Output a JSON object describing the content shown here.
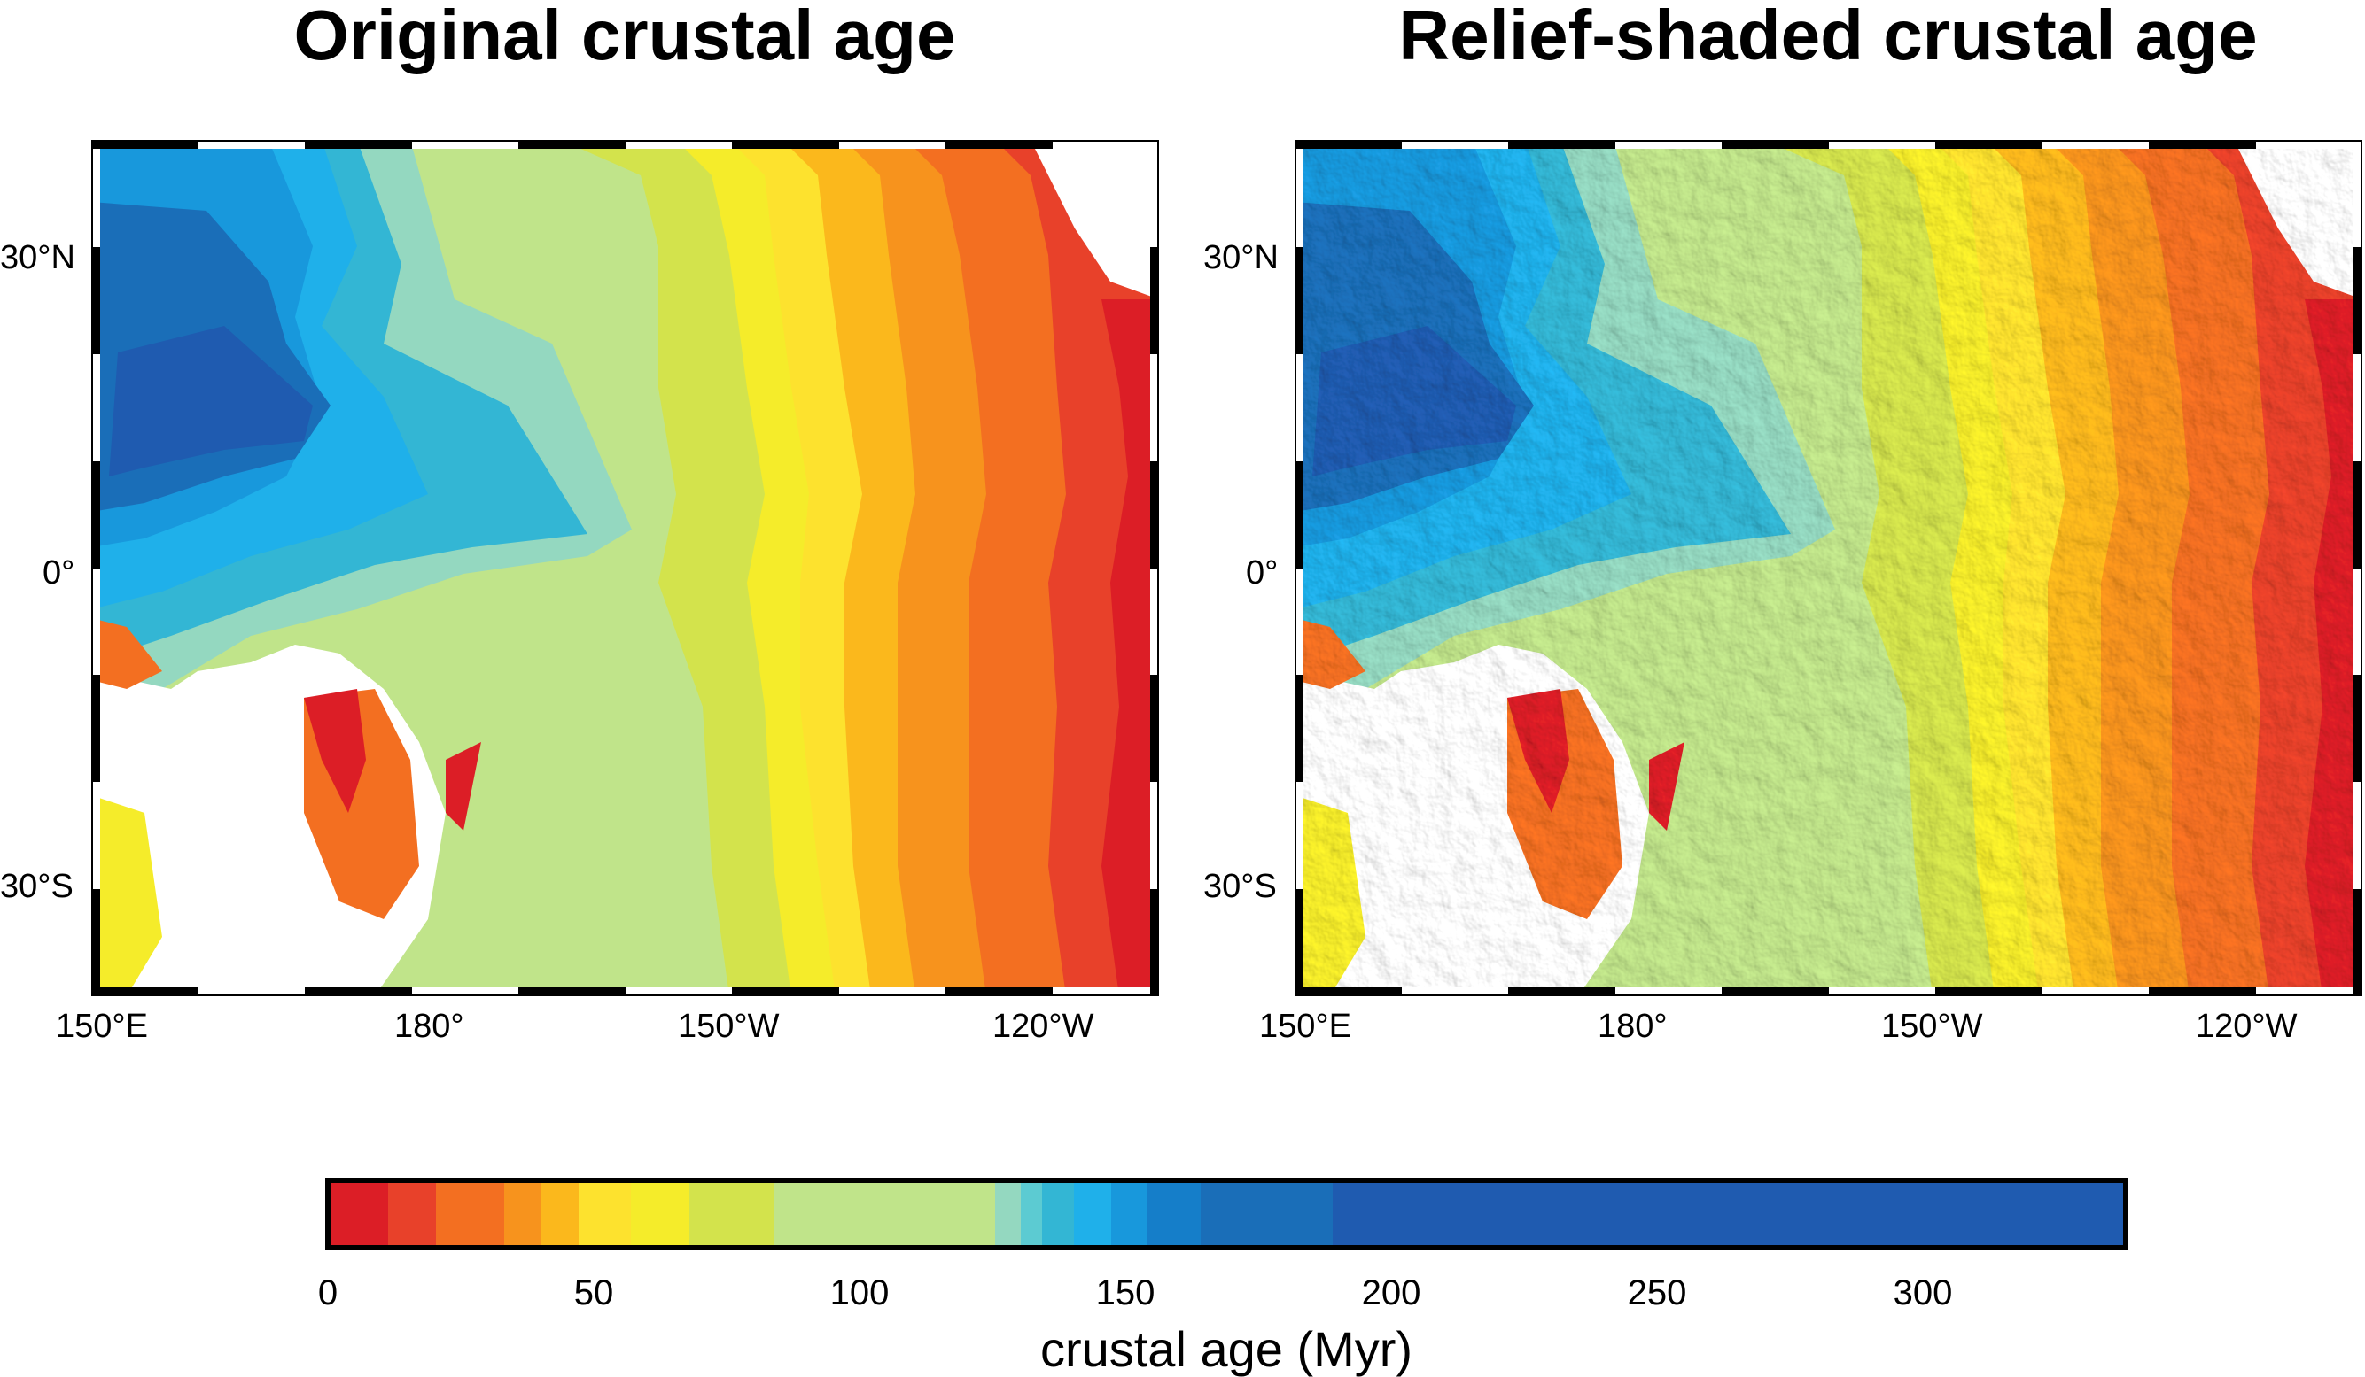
{
  "panels": [
    {
      "id": "original",
      "title": "Original crustal age",
      "shaded": false
    },
    {
      "id": "shaded",
      "title": "Relief-shaded crustal age",
      "shaded": true
    }
  ],
  "map_axes": {
    "lon_labels": [
      "150°E",
      "180°",
      "150°W",
      "120°W"
    ],
    "lat_labels": [
      "30°N",
      "0°",
      "30°S"
    ]
  },
  "colorbar": {
    "title": "crustal age (Myr)",
    "tick_labels": [
      "0",
      "50",
      "100",
      "150",
      "200",
      "250",
      "300"
    ],
    "range": [
      0,
      340
    ],
    "color_stops": [
      {
        "from": 0,
        "to": 11,
        "color": "#dc1e26"
      },
      {
        "from": 11,
        "to": 20,
        "color": "#e8412a"
      },
      {
        "from": 20,
        "to": 33,
        "color": "#f36f21"
      },
      {
        "from": 33,
        "to": 40,
        "color": "#f7931d"
      },
      {
        "from": 40,
        "to": 47,
        "color": "#fbb81c"
      },
      {
        "from": 47,
        "to": 57,
        "color": "#fde22e"
      },
      {
        "from": 57,
        "to": 68,
        "color": "#f5ec2a"
      },
      {
        "from": 68,
        "to": 84,
        "color": "#d3e34c"
      },
      {
        "from": 84,
        "to": 126,
        "color": "#c0e48a"
      },
      {
        "from": 126,
        "to": 131,
        "color": "#94d8c0"
      },
      {
        "from": 131,
        "to": 135,
        "color": "#5ccbd2"
      },
      {
        "from": 135,
        "to": 141,
        "color": "#33b6d4"
      },
      {
        "from": 141,
        "to": 148,
        "color": "#1fb0ea"
      },
      {
        "from": 148,
        "to": 155,
        "color": "#1898dc"
      },
      {
        "from": 155,
        "to": 165,
        "color": "#157ec9"
      },
      {
        "from": 165,
        "to": 190,
        "color": "#1a6eb8"
      },
      {
        "from": 190,
        "to": 340,
        "color": "#1f5bb0"
      }
    ]
  }
}
